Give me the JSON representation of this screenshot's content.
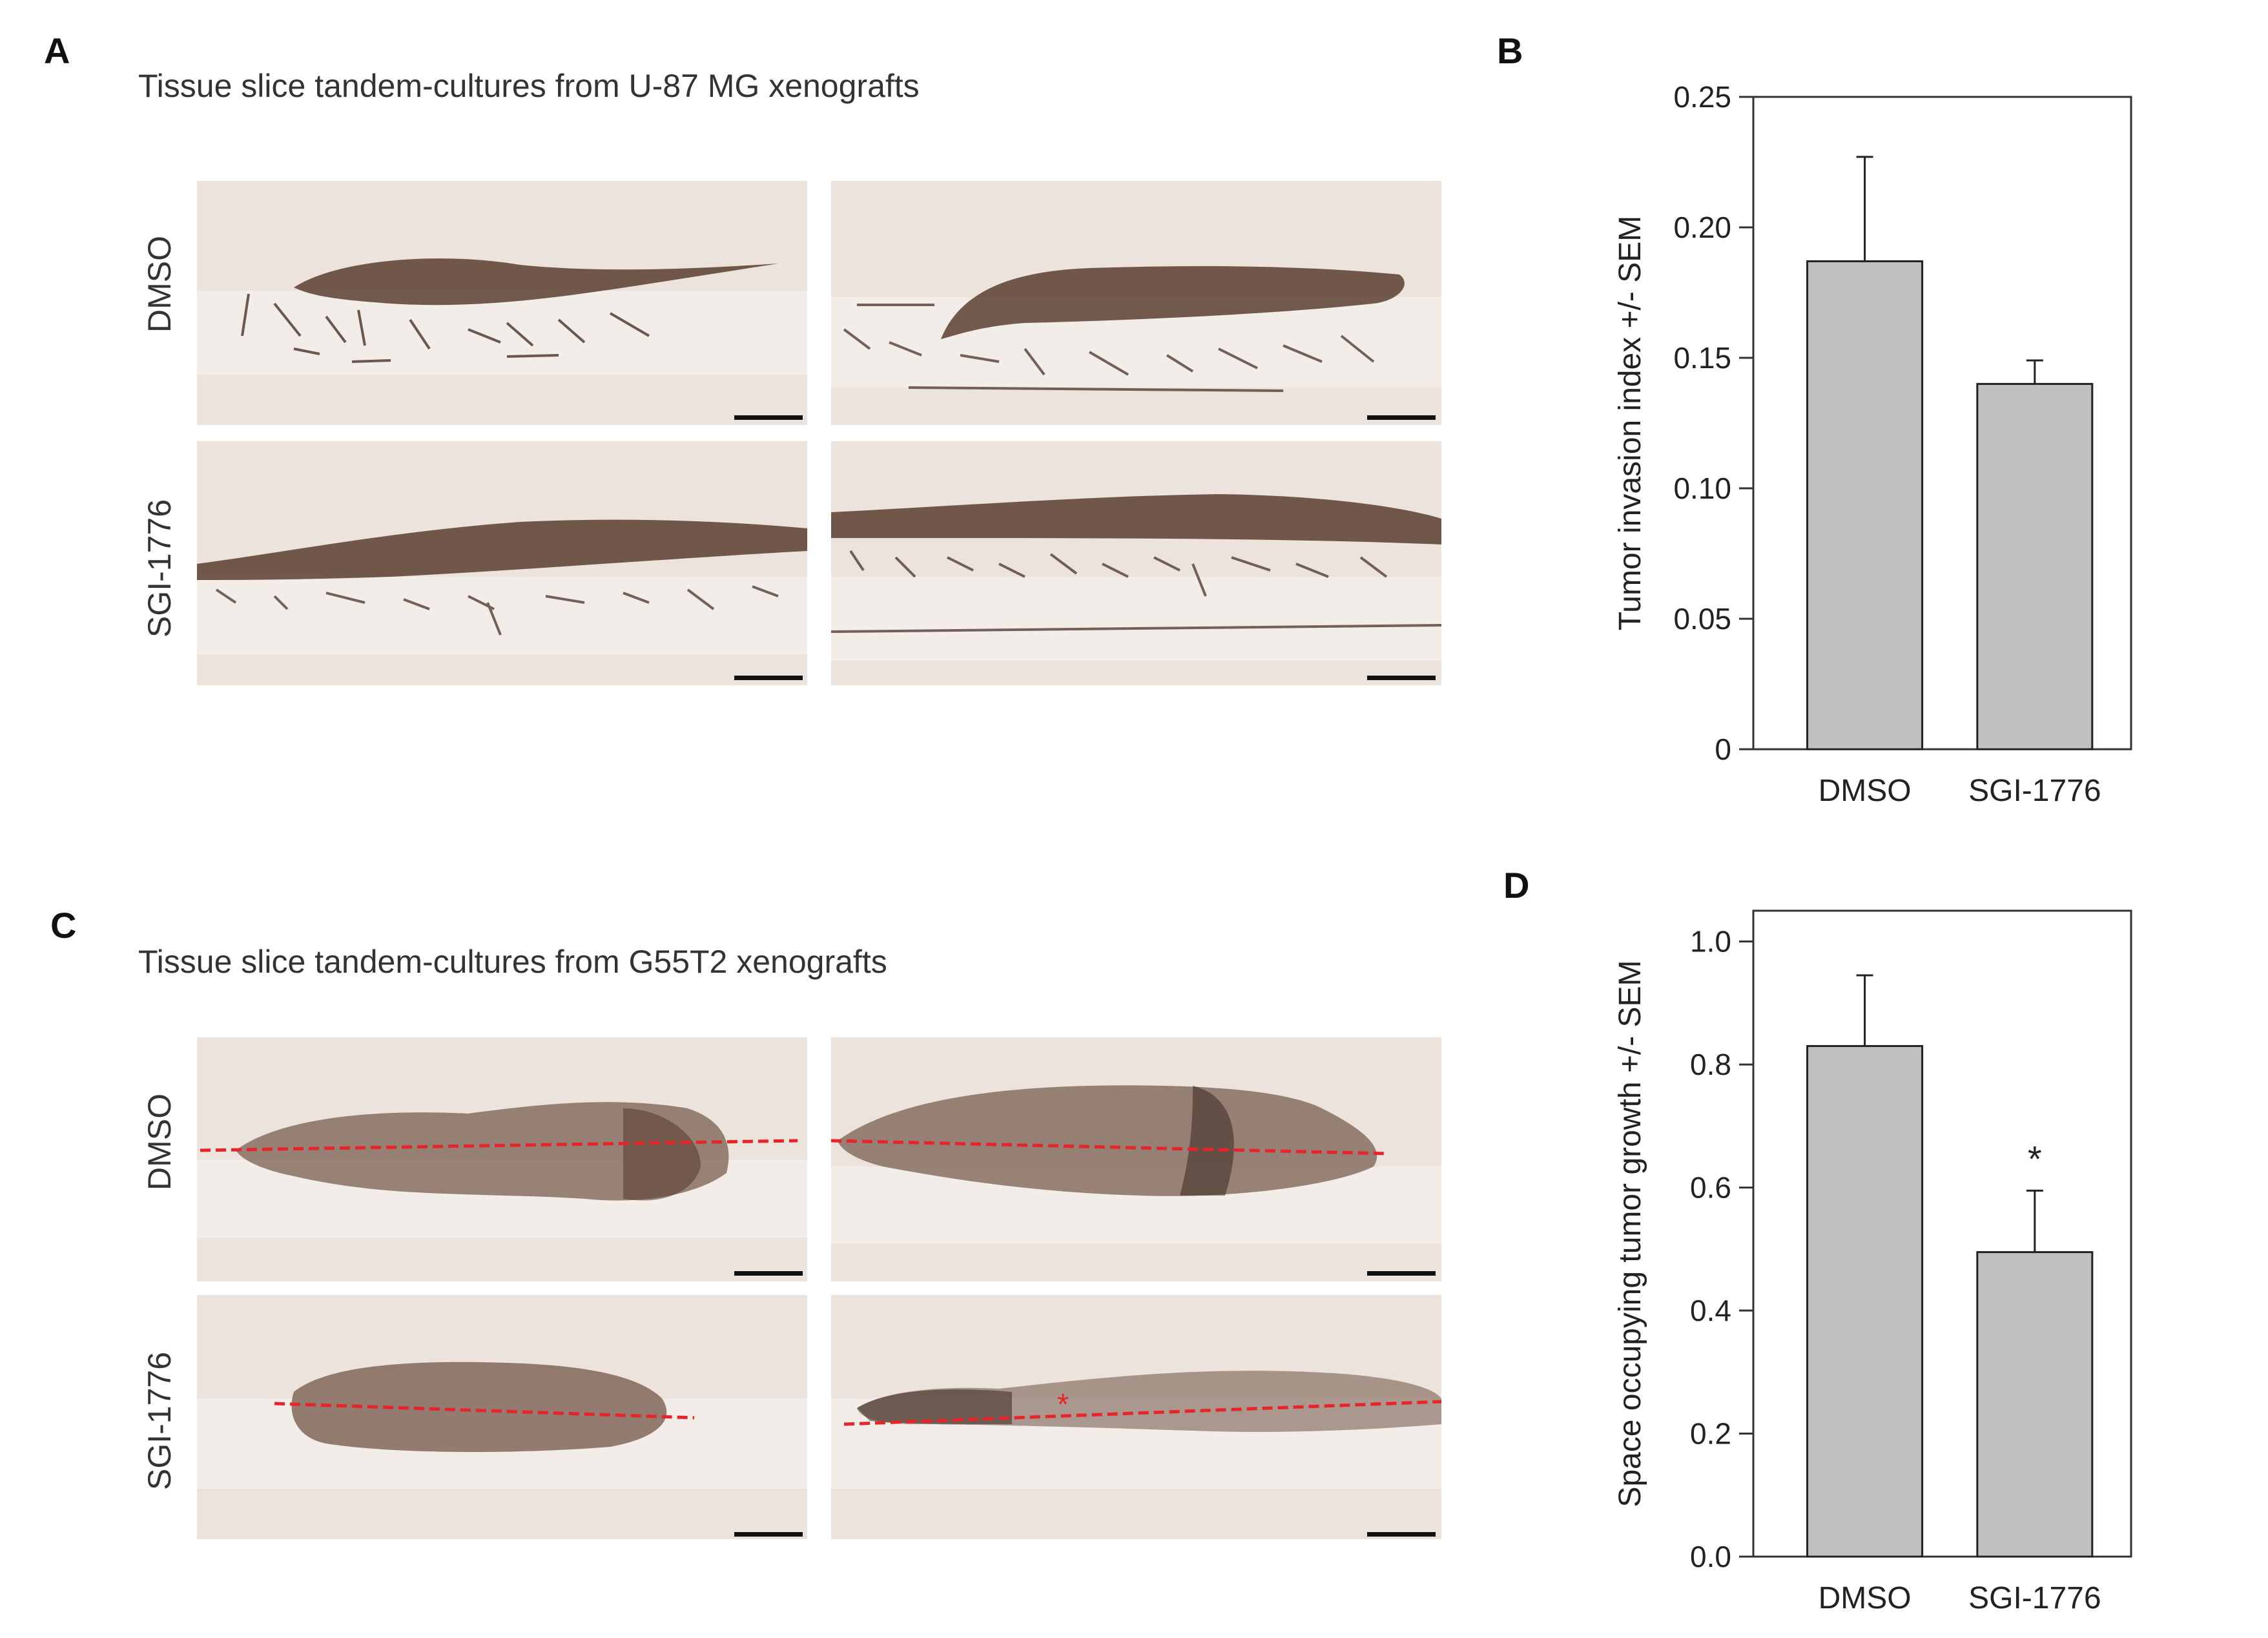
{
  "figure": {
    "panel_a": {
      "label": "A",
      "title": "Tissue slice tandem-cultures from U-87 MG xenografts",
      "rows": [
        "DMSO",
        "SGI-1776"
      ]
    },
    "panel_c": {
      "label": "C",
      "title": "Tissue slice tandem-cultures from G55T2 xenografts",
      "rows": [
        "DMSO",
        "SGI-1776"
      ]
    },
    "panel_b": {
      "label": "B"
    },
    "panel_d": {
      "label": "D"
    }
  },
  "chart_data": [
    {
      "panel": "B",
      "type": "bar",
      "categories": [
        "DMSO",
        "SGI-1776"
      ],
      "values": [
        0.187,
        0.14
      ],
      "error": [
        0.04,
        0.009
      ],
      "ylabel": "Tumor invasion index +/- SEM",
      "xlabel": "",
      "ylim": [
        0,
        0.25
      ],
      "yticks": [
        "0",
        "0.05",
        "0.10",
        "0.15",
        "0.20",
        "0.25"
      ],
      "tick_values": [
        0,
        0.05,
        0.1,
        0.15,
        0.2,
        0.25
      ],
      "annotations": [],
      "bar_color": "#c0c0c0"
    },
    {
      "panel": "D",
      "type": "bar",
      "categories": [
        "DMSO",
        "SGI-1776"
      ],
      "values": [
        0.83,
        0.495
      ],
      "error": [
        0.115,
        0.1
      ],
      "ylabel": "Space occupying tumor growth +/- SEM",
      "xlabel": "",
      "ylim": [
        0,
        1.05
      ],
      "yticks": [
        "0.0",
        "0.2",
        "0.4",
        "0.6",
        "0.8",
        "1.0"
      ],
      "tick_values": [
        0,
        0.2,
        0.4,
        0.6,
        0.8,
        1.0
      ],
      "annotations": [
        "",
        "*"
      ],
      "bar_color": "#c0c0c0"
    }
  ],
  "colors": {
    "tissue": "#ebe3dc",
    "stain": "#5a3e30",
    "guide_line": "#e8232a"
  }
}
